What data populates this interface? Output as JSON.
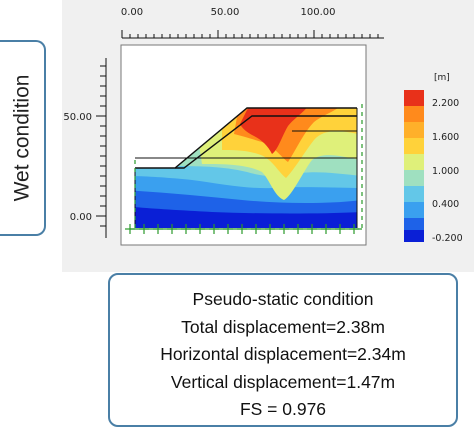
{
  "side_label": "Wet condition",
  "plot": {
    "x_ticks": [
      "0.00",
      "50.00",
      "100.00"
    ],
    "y_ticks": [
      "50.00",
      "0.00"
    ],
    "colorbar_unit": "[m]",
    "colorbar_labels": [
      "2.200",
      "1.600",
      "1.000",
      "0.400",
      "-0.200"
    ],
    "colors": {
      "c1": "#0a1fd6",
      "c2": "#1e62e8",
      "c3": "#3aa0ef",
      "c4": "#63c7e8",
      "c5": "#9fe0c0",
      "c6": "#dff07a",
      "c7": "#ffd23a",
      "c8": "#ff8a1c",
      "c9": "#e8311a"
    }
  },
  "caption": {
    "line1": "Pseudo-static condition",
    "line2": "Total displacement=2.38m",
    "line3": "Horizontal displacement=2.34m",
    "line4": "Vertical displacement=1.47m",
    "line5": "FS = 0.976"
  }
}
